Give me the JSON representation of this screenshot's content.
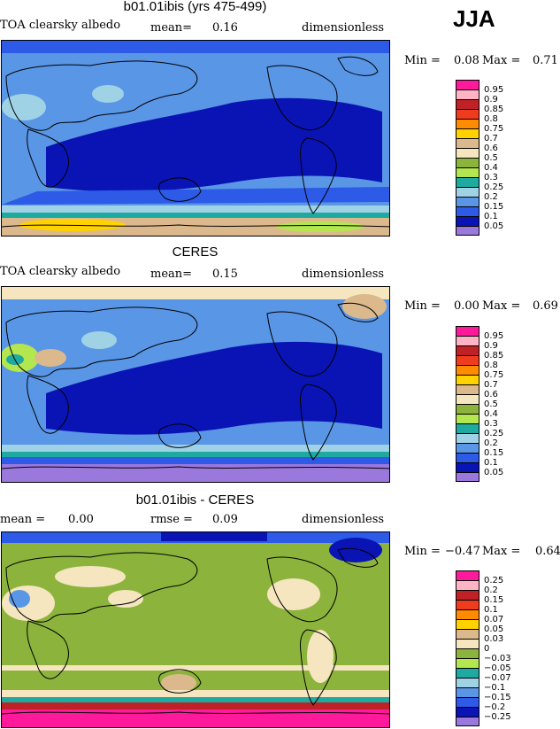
{
  "season": "JJA",
  "panels": [
    {
      "title": "b01.01ibis (yrs 475-499)",
      "left_label": "TOA clearsky albedo",
      "stat_label": "mean=",
      "stat_value": "0.16",
      "units": "dimensionless",
      "min_label": "Min =",
      "min_value": "0.08",
      "max_label": "Max =",
      "max_value": "0.71",
      "legend": [
        "0.95",
        "0.9",
        "0.85",
        "0.8",
        "0.75",
        "0.7",
        "0.6",
        "0.5",
        "0.4",
        "0.3",
        "0.25",
        "0.2",
        "0.15",
        "0.1",
        "0.05"
      ],
      "colors": [
        "#ff1a9c",
        "#ffb4c6",
        "#bf2226",
        "#f03c1e",
        "#ff8c00",
        "#ffd200",
        "#dcb98c",
        "#f5e6c0",
        "#8cb43c",
        "#b4e650",
        "#1eaaa0",
        "#a0d2e6",
        "#5a96e6",
        "#2d5ae6",
        "#0a14b4",
        "#9b78dc"
      ]
    },
    {
      "title": "CERES",
      "left_label": "TOA clearsky albedo",
      "stat_label": "mean=",
      "stat_value": "0.15",
      "units": "dimensionless",
      "min_label": "Min =",
      "min_value": "0.00",
      "max_label": "Max =",
      "max_value": "0.69",
      "legend": [
        "0.95",
        "0.9",
        "0.85",
        "0.8",
        "0.75",
        "0.7",
        "0.6",
        "0.5",
        "0.4",
        "0.3",
        "0.25",
        "0.2",
        "0.15",
        "0.1",
        "0.05"
      ],
      "colors": [
        "#ff1a9c",
        "#ffb4c6",
        "#bf2226",
        "#f03c1e",
        "#ff8c00",
        "#ffd200",
        "#dcb98c",
        "#f5e6c0",
        "#8cb43c",
        "#b4e650",
        "#1eaaa0",
        "#a0d2e6",
        "#5a96e6",
        "#2d5ae6",
        "#0a14b4",
        "#9b78dc"
      ]
    },
    {
      "title": "b01.01ibis - CERES",
      "left_label": "mean =",
      "left_value": "0.00",
      "stat_label": "rmse =",
      "stat_value": "0.09",
      "units": "dimensionless",
      "min_label": "Min =",
      "min_value": "−0.47",
      "max_label": "Max =",
      "max_value": "0.64",
      "legend": [
        "0.25",
        "0.2",
        "0.15",
        "0.1",
        "0.07",
        "0.05",
        "0.03",
        "0",
        "−0.03",
        "−0.05",
        "−0.07",
        "−0.1",
        "−0.15",
        "−0.2",
        "−0.25"
      ],
      "colors": [
        "#ff1a9c",
        "#ffb4c6",
        "#bf2226",
        "#f03c1e",
        "#ff8c00",
        "#ffd200",
        "#dcb98c",
        "#f5e6c0",
        "#8cb43c",
        "#b4e650",
        "#1eaaa0",
        "#a0d2e6",
        "#5a96e6",
        "#2d5ae6",
        "#0a14b4",
        "#9b78dc"
      ]
    }
  ]
}
